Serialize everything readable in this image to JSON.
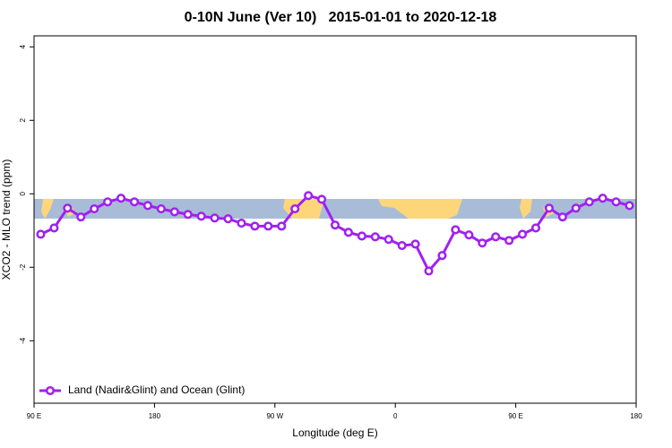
{
  "chart_data": {
    "type": "line",
    "title": "0-10N June (Ver 10)   2015-01-01 to 2020-12-18",
    "x_label": "Longitude (deg E)",
    "y_label": "XCO2 - MLO trend (ppm)",
    "x": [
      95,
      105,
      115,
      125,
      135,
      145,
      155,
      165,
      175,
      185,
      195,
      205,
      215,
      225,
      235,
      245,
      255,
      265,
      275,
      285,
      295,
      305,
      315,
      325,
      335,
      345,
      355,
      365,
      375,
      385,
      395,
      405,
      415,
      425,
      435,
      445,
      455,
      465,
      475,
      485,
      495,
      505,
      515,
      525,
      535
    ],
    "series": [
      {
        "name": "Land (Nadir&Glint) and Ocean (Glint)",
        "color": "#a020f0",
        "values": [
          -1.1,
          -0.93,
          -0.39,
          -0.63,
          -0.41,
          -0.22,
          -0.12,
          -0.22,
          -0.32,
          -0.41,
          -0.49,
          -0.56,
          -0.61,
          -0.66,
          -0.68,
          -0.8,
          -0.88,
          -0.88,
          -0.88,
          -0.41,
          -0.05,
          -0.15,
          -0.85,
          -1.05,
          -1.15,
          -1.17,
          -1.24,
          -1.41,
          -1.37,
          -2.1,
          -1.68,
          -0.98,
          -1.12,
          -1.34,
          -1.17,
          -1.27,
          -1.1,
          -0.93,
          -0.39,
          -0.63,
          -0.39,
          -0.22,
          -0.12,
          -0.22,
          -0.32
        ]
      }
    ],
    "xlim": [
      90,
      540
    ],
    "xticks": [
      {
        "value": 90,
        "label": "90 E"
      },
      180,
      {
        "value": 270,
        "label": "90 W"
      },
      {
        "value": 360,
        "label": "0"
      },
      {
        "value": 450,
        "label": "90 E"
      },
      {
        "value": 540,
        "label": "180"
      }
    ],
    "ylim": [
      -5.7,
      4.3
    ],
    "yticks": [
      -4,
      -2,
      0,
      2,
      4
    ],
    "legend": "bottom-left"
  }
}
